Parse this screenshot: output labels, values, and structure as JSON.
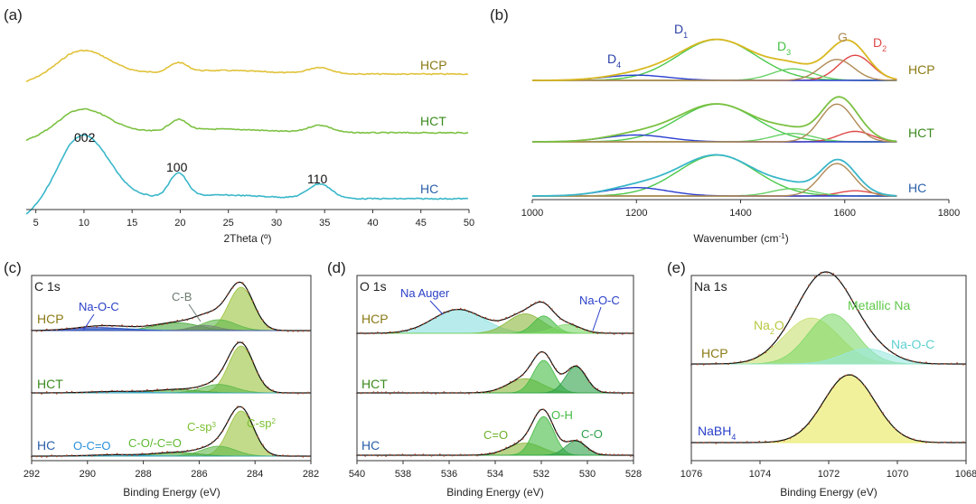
{
  "chart_data": [
    {
      "id": "a",
      "panel_label": "(a)",
      "type": "line",
      "title": "",
      "xlabel": "2Theta (º)",
      "ylabel": "",
      "xlim": [
        4,
        50
      ],
      "xticks": [
        5,
        10,
        15,
        20,
        25,
        30,
        35,
        40,
        45,
        50
      ],
      "series": [
        {
          "name": "HCP",
          "color": "#e0c23a",
          "label_color": "#8b7a16"
        },
        {
          "name": "HCT",
          "color": "#7cc142",
          "label_color": "#3b8a1e"
        },
        {
          "name": "HC",
          "color": "#3ab7c9",
          "label_color": "#2a5fa8"
        }
      ],
      "annotations": [
        {
          "text": "002",
          "x": 10
        },
        {
          "text": "100",
          "x": 19.8
        },
        {
          "text": "110",
          "x": 34.5
        }
      ]
    },
    {
      "id": "b",
      "panel_label": "(b)",
      "type": "line",
      "title": "",
      "xlabel_prefix": "Wavenumber (cm",
      "xlabel_sup": "-1",
      "xlabel_suffix": ")",
      "xlim": [
        1000,
        1800
      ],
      "xticks": [
        1000,
        1200,
        1400,
        1600,
        1800
      ],
      "samples": [
        "HCP",
        "HCT",
        "HC"
      ],
      "sample_colors": [
        "#8b7a16",
        "#3b8a1e",
        "#2a5fa8"
      ],
      "bands": [
        {
          "name": "D1",
          "base": "D",
          "sub": "1",
          "center": 1355,
          "color": "#4cc94c",
          "label_color": "#2a3fa8"
        },
        {
          "name": "D2",
          "base": "D",
          "sub": "2",
          "center": 1620,
          "color": "#e04848",
          "label_color": "#e04848"
        },
        {
          "name": "D3",
          "base": "D",
          "sub": "3",
          "center": 1500,
          "color": "#66d166",
          "label_color": "#44c044"
        },
        {
          "name": "D4",
          "base": "D",
          "sub": "4",
          "center": 1200,
          "color": "#2a3fd0",
          "label_color": "#2a3fa8"
        },
        {
          "name": "G",
          "base": "G",
          "sub": "",
          "center": 1585,
          "color": "#b08a55",
          "label_color": "#b08a55"
        }
      ],
      "fits": [
        {
          "sample": "HCP",
          "D4": 0.1,
          "D1": 0.78,
          "D3": 0.22,
          "G": 0.4,
          "D2": 0.48
        },
        {
          "sample": "HCT",
          "D4": 0.13,
          "D1": 0.72,
          "D3": 0.16,
          "G": 0.72,
          "D2": 0.2
        },
        {
          "sample": "HC",
          "D4": 0.16,
          "D1": 0.78,
          "D3": 0.14,
          "G": 0.62,
          "D2": 0.1
        }
      ]
    },
    {
      "id": "c",
      "panel_label": "(c)",
      "element_label": "C 1s",
      "type": "area",
      "xlabel": "Binding Energy (eV)",
      "xlim": [
        292,
        282
      ],
      "xticks": [
        292,
        290,
        288,
        286,
        284,
        282
      ],
      "samples": [
        {
          "name": "HCP",
          "color": "#8b7a16"
        },
        {
          "name": "HCT",
          "color": "#3b8a1e"
        },
        {
          "name": "HC",
          "color": "#2a5fa8"
        }
      ],
      "components": [
        {
          "name": "C-sp2",
          "center": 284.5,
          "sigma": 0.45,
          "color": "#9ac33c"
        },
        {
          "name": "C-sp3",
          "center": 285.3,
          "sigma": 0.6,
          "color": "#5fb84a"
        },
        {
          "name": "C-O/-C=O",
          "center": 286.8,
          "sigma": 0.8,
          "color": "#4aa83a"
        },
        {
          "name": "O-C=O",
          "center": 289.0,
          "sigma": 0.9,
          "color": "#3aaad8"
        },
        {
          "name": "C-B",
          "center": 285.8,
          "sigma": 0.5,
          "color": "#778877"
        },
        {
          "name": "Na-O-C",
          "center": 289.6,
          "sigma": 0.9,
          "color": "#3344bb"
        }
      ],
      "fits": [
        {
          "sample": "HCP",
          "C-sp2": 1.0,
          "C-sp3": 0.25,
          "C-O/-C=O": 0.18,
          "O-C=O": 0.05,
          "C-B": 0.12,
          "Na-O-C": 0.07
        },
        {
          "sample": "HCT",
          "C-sp2": 1.0,
          "C-sp3": 0.18,
          "C-O/-C=O": 0.07,
          "O-C=O": 0.03,
          "C-B": 0,
          "Na-O-C": 0
        },
        {
          "sample": "HC",
          "C-sp2": 1.0,
          "C-sp3": 0.22,
          "C-O/-C=O": 0.08,
          "O-C=O": 0.03,
          "C-B": 0,
          "Na-O-C": 0
        }
      ],
      "annotations": [
        {
          "text": "Na-O-C",
          "color": "#2a3fc8"
        },
        {
          "text": "C-B",
          "color": "#6d7c70"
        },
        {
          "text": "O-C=O",
          "color": "#2a8fd8"
        },
        {
          "text": "C-O/-C=O",
          "color": "#5fb830"
        },
        {
          "text": "C-sp",
          "sup": "3",
          "color": "#7ac030"
        },
        {
          "text": "C-sp",
          "sup": "2",
          "color": "#7ac030"
        }
      ]
    },
    {
      "id": "d",
      "panel_label": "(d)",
      "element_label": "O 1s",
      "type": "area",
      "xlabel": "Binding Energy (eV)",
      "xlim": [
        540,
        528
      ],
      "xticks": [
        540,
        538,
        536,
        534,
        532,
        530,
        528
      ],
      "samples": [
        {
          "name": "HCP",
          "color": "#8b7a16"
        },
        {
          "name": "HCT",
          "color": "#3b8a1e"
        },
        {
          "name": "HC",
          "color": "#2a5fa8"
        }
      ],
      "components": [
        {
          "name": "Na Auger",
          "center": 535.6,
          "sigma": 1.1,
          "color": "#88e0e0"
        },
        {
          "name": "C=O",
          "center": 532.7,
          "sigma": 0.75,
          "color": "#8ab838"
        },
        {
          "name": "O-H",
          "center": 531.9,
          "sigma": 0.45,
          "color": "#44bb44"
        },
        {
          "name": "C-O",
          "center": 530.5,
          "sigma": 0.45,
          "color": "#2fa04a"
        },
        {
          "name": "Na-O-C",
          "center": 530.9,
          "sigma": 0.6,
          "color": "#7fd86a"
        }
      ],
      "fits": [
        {
          "sample": "HCP",
          "Na Auger": 0.55,
          "C=O": 0.45,
          "O-H": 0.4,
          "C-O": 0,
          "Na-O-C": 0.2
        },
        {
          "sample": "HCT",
          "Na Auger": 0,
          "C=O": 0.35,
          "O-H": 0.8,
          "C-O": 0.65,
          "Na-O-C": 0
        },
        {
          "sample": "HC",
          "Na Auger": 0,
          "C=O": 0.3,
          "O-H": 0.95,
          "C-O": 0.35,
          "Na-O-C": 0
        }
      ],
      "annotations": [
        {
          "text": "Na Auger",
          "color": "#2a3fc8"
        },
        {
          "text": "Na-O-C",
          "color": "#2a3fc8"
        },
        {
          "text": "C=O",
          "color": "#6fb02a"
        },
        {
          "text": "O-H",
          "color": "#44bb44"
        },
        {
          "text": "C-O",
          "color": "#2fa04a"
        }
      ]
    },
    {
      "id": "e",
      "panel_label": "(e)",
      "element_label": "Na 1s",
      "type": "area",
      "xlabel": "Binding Energy (eV)",
      "xlim": [
        1076,
        1068
      ],
      "xticks": [
        1076,
        1074,
        1072,
        1070,
        1068
      ],
      "samples": [
        {
          "name": "HCP",
          "color": "#8b7a16"
        },
        {
          "name": "NaBH",
          "sub": "4",
          "color": "#2a3fc8"
        }
      ],
      "components": [
        {
          "name": "Na2O",
          "center": 1072.5,
          "sigma": 0.8,
          "color": "#c8e070"
        },
        {
          "name": "Metallic Na",
          "center": 1071.9,
          "sigma": 0.7,
          "color": "#7fd86a"
        },
        {
          "name": "Na-O-C",
          "center": 1070.9,
          "sigma": 0.7,
          "color": "#9ae8e0"
        },
        {
          "name": "NaBH4",
          "center": 1071.4,
          "sigma": 0.75,
          "color": "#e8e85a"
        }
      ],
      "fits": [
        {
          "sample": "HCP",
          "Na2O": 0.6,
          "Metallic Na": 0.65,
          "Na-O-C": 0.2,
          "NaBH4": 0
        },
        {
          "sample": "NaBH4",
          "Na2O": 0,
          "Metallic Na": 0,
          "Na-O-C": 0,
          "NaBH4": 1.0
        }
      ],
      "annotations": [
        {
          "text": "Na",
          "sub": "2",
          "tail": "O",
          "color": "#b8c840"
        },
        {
          "text": "Metallic Na",
          "color": "#5fc84a"
        },
        {
          "text": "Na-O-C",
          "color": "#5fd0d0"
        }
      ]
    }
  ]
}
